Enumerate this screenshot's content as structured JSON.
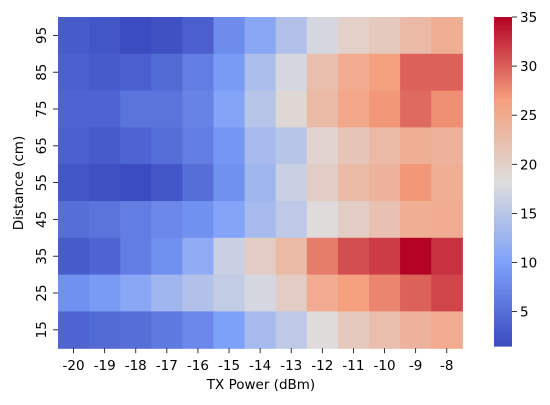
{
  "chart_data": {
    "type": "heatmap",
    "title": "",
    "xlabel": "TX Power (dBm)",
    "ylabel": "Distance (cm)",
    "x_categories": [
      "-20",
      "-19",
      "-18",
      "-17",
      "-16",
      "-15",
      "-14",
      "-13",
      "-12",
      "-11",
      "-10",
      "-9",
      "-8"
    ],
    "y_categories": [
      "95",
      "85",
      "75",
      "65",
      "55",
      "45",
      "35",
      "25",
      "15"
    ],
    "values": [
      [
        3.0,
        2.5,
        1.5,
        2.0,
        3.5,
        8.0,
        11.0,
        14.5,
        17.5,
        20.0,
        21.0,
        23.0,
        24.5
      ],
      [
        3.5,
        3.0,
        3.5,
        4.5,
        6.5,
        9.5,
        14.0,
        17.5,
        22.5,
        25.0,
        26.5,
        30.0,
        30.0
      ],
      [
        4.0,
        4.0,
        5.5,
        5.5,
        7.0,
        10.5,
        15.0,
        19.0,
        23.0,
        25.5,
        27.0,
        29.5,
        27.5
      ],
      [
        3.5,
        3.0,
        4.0,
        5.0,
        6.5,
        9.0,
        13.5,
        15.0,
        19.5,
        21.5,
        23.0,
        24.5,
        24.0
      ],
      [
        2.5,
        2.0,
        1.5,
        2.5,
        5.0,
        8.5,
        13.0,
        16.5,
        20.5,
        23.0,
        24.0,
        27.0,
        24.5
      ],
      [
        5.0,
        5.5,
        6.5,
        7.5,
        8.5,
        10.5,
        13.5,
        15.5,
        18.5,
        20.5,
        22.0,
        24.5,
        25.0
      ],
      [
        3.0,
        4.0,
        6.5,
        8.5,
        11.5,
        16.5,
        20.5,
        23.0,
        28.5,
        31.0,
        32.0,
        35.0,
        32.5
      ],
      [
        8.5,
        9.5,
        11.0,
        13.0,
        14.5,
        16.0,
        17.5,
        20.5,
        25.0,
        26.5,
        28.0,
        30.0,
        31.5
      ],
      [
        4.0,
        4.5,
        5.0,
        6.0,
        7.5,
        10.0,
        13.5,
        15.5,
        18.5,
        21.0,
        22.5,
        24.0,
        25.0
      ]
    ],
    "colorbar": {
      "colormap": "coolwarm",
      "vmin": 1.5,
      "vmax": 35.0,
      "ticks": [
        "5",
        "10",
        "15",
        "20",
        "25",
        "30",
        "35"
      ]
    }
  }
}
